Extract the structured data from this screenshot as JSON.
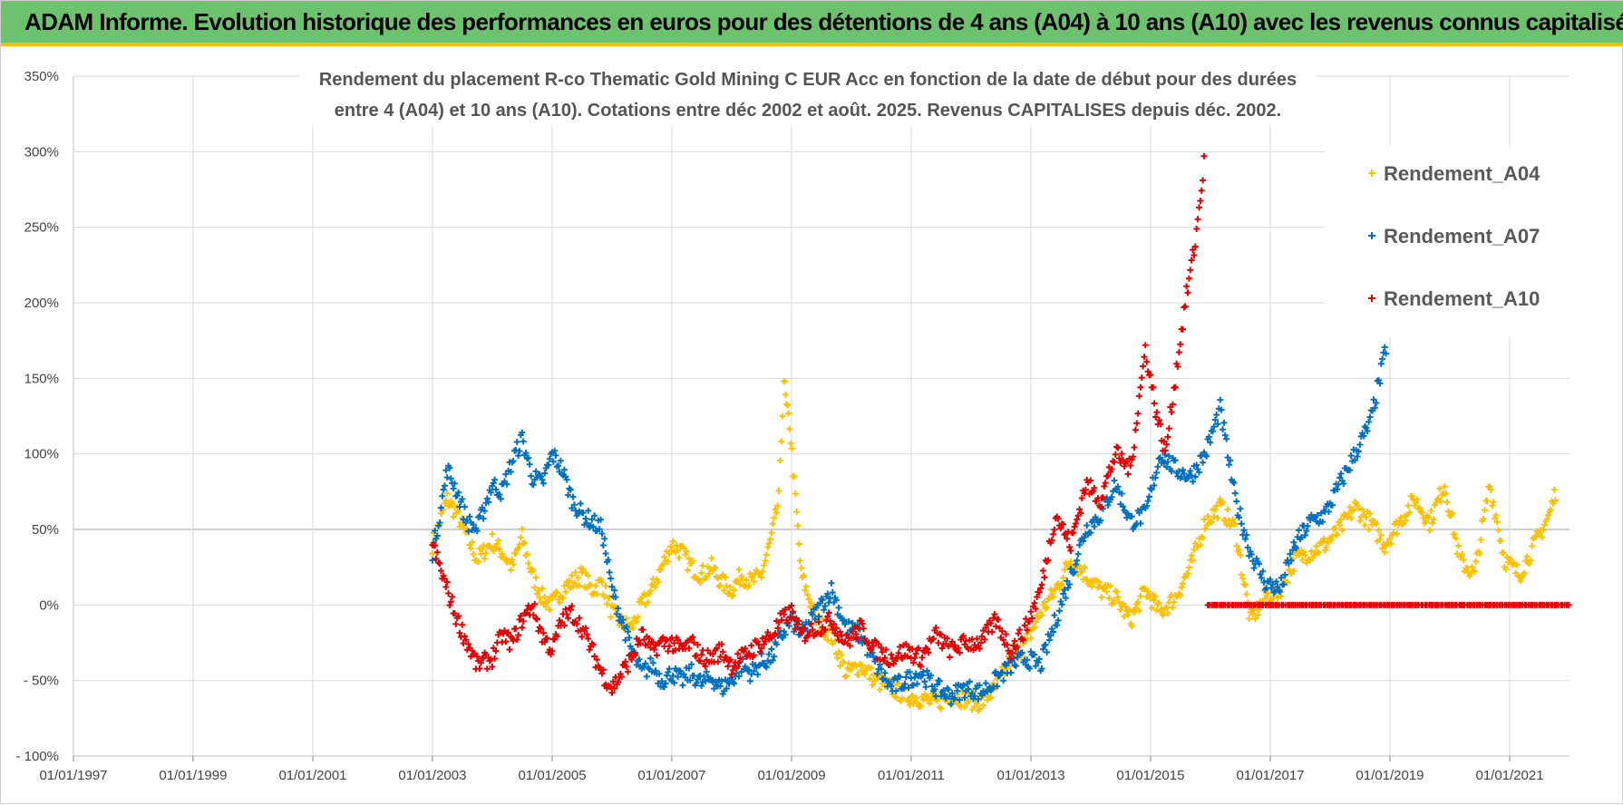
{
  "banner": {
    "title": "ADAM Informe. Evolution historique des performances en euros pour des détentions de 4 ans (A04) à 10 ans (A10) avec les revenus connus capitalisés"
  },
  "colors": {
    "banner_bg": "#6dc36d",
    "banner_accent": "#f2c200",
    "series_A04": "#ffc000",
    "series_A07": "#0070c0",
    "series_A10": "#e60000",
    "grid": "#d9d9d9",
    "zero_line": "#bfbfbf"
  },
  "chart_data": {
    "type": "scatter",
    "title_lines": [
      "Rendement du placement R-co Thematic Gold Mining C EUR Acc en fonction de la date de début pour des durées",
      "entre 4 (A04) et 10 ans (A10).  Cotations entre déc 2002 et août. 2025. Revenus CAPITALISES depuis déc. 2002."
    ],
    "xlabel": "",
    "ylabel": "",
    "x_ticks": [
      "01/01/1997",
      "01/01/1999",
      "01/01/2001",
      "01/01/2003",
      "01/01/2005",
      "01/01/2007",
      "01/01/2009",
      "01/01/2011",
      "01/01/2013",
      "01/01/2015",
      "01/01/2017",
      "01/01/2019",
      "01/01/2021"
    ],
    "xlim": [
      "01/01/1997",
      "01/01/2022"
    ],
    "y_ticks": [
      "- 100%",
      "- 50%",
      "0%",
      "50%",
      "100%",
      "150%",
      "200%",
      "250%",
      "300%",
      "350%"
    ],
    "ylim": [
      -100,
      350
    ],
    "y_unit": "%",
    "grid": true,
    "legend_position": "top-right",
    "marker": "+",
    "series": [
      {
        "name": "Rendement_A04",
        "color": "#ffc000",
        "points": [
          [
            "2003-01-01",
            40
          ],
          [
            "2003-02-15",
            55
          ],
          [
            "2003-04-01",
            70
          ],
          [
            "2003-06-01",
            60
          ],
          [
            "2003-08-01",
            45
          ],
          [
            "2003-10-01",
            30
          ],
          [
            "2004-01-01",
            42
          ],
          [
            "2004-03-01",
            35
          ],
          [
            "2004-05-01",
            25
          ],
          [
            "2004-07-01",
            45
          ],
          [
            "2004-09-01",
            20
          ],
          [
            "2004-11-01",
            5
          ],
          [
            "2005-01-01",
            0
          ],
          [
            "2005-03-01",
            10
          ],
          [
            "2005-05-01",
            15
          ],
          [
            "2005-07-01",
            20
          ],
          [
            "2005-09-01",
            10
          ],
          [
            "2005-11-01",
            15
          ],
          [
            "2006-01-01",
            -5
          ],
          [
            "2006-03-01",
            -12
          ],
          [
            "2006-05-01",
            -15
          ],
          [
            "2006-07-01",
            0
          ],
          [
            "2006-09-01",
            10
          ],
          [
            "2006-11-01",
            25
          ],
          [
            "2007-01-01",
            40
          ],
          [
            "2007-03-01",
            35
          ],
          [
            "2007-05-01",
            25
          ],
          [
            "2007-07-01",
            20
          ],
          [
            "2007-09-01",
            25
          ],
          [
            "2007-11-01",
            15
          ],
          [
            "2008-01-01",
            10
          ],
          [
            "2008-03-01",
            20
          ],
          [
            "2008-05-01",
            15
          ],
          [
            "2008-07-01",
            20
          ],
          [
            "2008-09-01",
            45
          ],
          [
            "2008-10-15",
            70
          ],
          [
            "2008-11-15",
            150
          ],
          [
            "2008-12-01",
            130
          ],
          [
            "2008-12-20",
            120
          ],
          [
            "2009-01-10",
            90
          ],
          [
            "2009-02-01",
            60
          ],
          [
            "2009-03-01",
            20
          ],
          [
            "2009-06-01",
            -10
          ],
          [
            "2009-09-01",
            -20
          ],
          [
            "2009-12-01",
            -45
          ],
          [
            "2010-03-01",
            -40
          ],
          [
            "2010-06-01",
            -50
          ],
          [
            "2010-09-01",
            -55
          ],
          [
            "2010-12-01",
            -60
          ],
          [
            "2011-03-01",
            -62
          ],
          [
            "2011-06-01",
            -65
          ],
          [
            "2011-09-01",
            -60
          ],
          [
            "2011-12-01",
            -62
          ],
          [
            "2012-03-01",
            -65
          ],
          [
            "2012-06-01",
            -55
          ],
          [
            "2012-09-01",
            -35
          ],
          [
            "2012-12-01",
            -25
          ],
          [
            "2013-03-01",
            -5
          ],
          [
            "2013-06-01",
            10
          ],
          [
            "2013-09-01",
            30
          ],
          [
            "2013-12-01",
            20
          ],
          [
            "2014-03-01",
            10
          ],
          [
            "2014-06-01",
            5
          ],
          [
            "2014-09-01",
            -10
          ],
          [
            "2014-12-01",
            10
          ],
          [
            "2015-03-01",
            -5
          ],
          [
            "2015-06-01",
            5
          ],
          [
            "2015-09-01",
            25
          ],
          [
            "2015-12-01",
            55
          ],
          [
            "2016-03-01",
            65
          ],
          [
            "2016-06-01",
            50
          ],
          [
            "2016-09-01",
            -10
          ],
          [
            "2016-12-01",
            5
          ],
          [
            "2017-03-01",
            10
          ],
          [
            "2017-06-01",
            30
          ],
          [
            "2017-09-01",
            35
          ],
          [
            "2017-12-01",
            40
          ],
          [
            "2018-03-01",
            50
          ],
          [
            "2018-06-01",
            65
          ],
          [
            "2018-09-01",
            55
          ],
          [
            "2018-12-01",
            40
          ],
          [
            "2019-03-01",
            55
          ],
          [
            "2019-06-01",
            70
          ],
          [
            "2019-09-01",
            55
          ],
          [
            "2019-12-01",
            80
          ],
          [
            "2020-03-01",
            30
          ],
          [
            "2020-06-01",
            20
          ],
          [
            "2020-09-01",
            80
          ],
          [
            "2020-12-01",
            30
          ],
          [
            "2021-03-01",
            20
          ],
          [
            "2021-06-01",
            40
          ],
          [
            "2021-09-01",
            60
          ],
          [
            "2021-10-15",
            78
          ]
        ]
      },
      {
        "name": "Rendement_A07",
        "color": "#0070c0",
        "points": [
          [
            "2003-01-01",
            35
          ],
          [
            "2003-02-15",
            60
          ],
          [
            "2003-04-01",
            90
          ],
          [
            "2003-06-01",
            75
          ],
          [
            "2003-08-01",
            55
          ],
          [
            "2003-10-01",
            50
          ],
          [
            "2004-01-01",
            80
          ],
          [
            "2004-03-01",
            75
          ],
          [
            "2004-05-01",
            95
          ],
          [
            "2004-07-01",
            110
          ],
          [
            "2004-09-01",
            85
          ],
          [
            "2004-11-01",
            80
          ],
          [
            "2005-01-01",
            100
          ],
          [
            "2005-03-01",
            90
          ],
          [
            "2005-05-01",
            70
          ],
          [
            "2005-07-01",
            60
          ],
          [
            "2005-09-01",
            55
          ],
          [
            "2005-11-01",
            50
          ],
          [
            "2006-01-01",
            10
          ],
          [
            "2006-03-01",
            -10
          ],
          [
            "2006-05-01",
            -30
          ],
          [
            "2006-07-01",
            -45
          ],
          [
            "2006-09-01",
            -40
          ],
          [
            "2006-11-01",
            -50
          ],
          [
            "2007-01-01",
            -45
          ],
          [
            "2007-03-01",
            -50
          ],
          [
            "2007-05-01",
            -45
          ],
          [
            "2007-07-01",
            -52
          ],
          [
            "2007-09-01",
            -48
          ],
          [
            "2007-11-01",
            -55
          ],
          [
            "2008-01-01",
            -50
          ],
          [
            "2008-03-01",
            -40
          ],
          [
            "2008-05-01",
            -45
          ],
          [
            "2008-07-01",
            -38
          ],
          [
            "2008-09-01",
            -35
          ],
          [
            "2008-11-01",
            -20
          ],
          [
            "2009-01-01",
            -10
          ],
          [
            "2009-03-01",
            -20
          ],
          [
            "2009-06-01",
            -5
          ],
          [
            "2009-09-01",
            10
          ],
          [
            "2009-12-01",
            -15
          ],
          [
            "2010-03-01",
            -20
          ],
          [
            "2010-06-01",
            -40
          ],
          [
            "2010-09-01",
            -55
          ],
          [
            "2010-12-01",
            -50
          ],
          [
            "2011-03-01",
            -45
          ],
          [
            "2011-06-01",
            -55
          ],
          [
            "2011-09-01",
            -60
          ],
          [
            "2011-12-01",
            -55
          ],
          [
            "2012-03-01",
            -58
          ],
          [
            "2012-06-01",
            -50
          ],
          [
            "2012-09-01",
            -40
          ],
          [
            "2012-12-01",
            -35
          ],
          [
            "2013-03-01",
            -40
          ],
          [
            "2013-06-01",
            -10
          ],
          [
            "2013-09-01",
            20
          ],
          [
            "2013-12-01",
            50
          ],
          [
            "2014-03-01",
            60
          ],
          [
            "2014-06-01",
            80
          ],
          [
            "2014-09-01",
            55
          ],
          [
            "2014-12-01",
            60
          ],
          [
            "2015-03-01",
            100
          ],
          [
            "2015-06-01",
            90
          ],
          [
            "2015-09-01",
            85
          ],
          [
            "2015-12-01",
            100
          ],
          [
            "2016-03-01",
            130
          ],
          [
            "2016-06-01",
            70
          ],
          [
            "2016-09-01",
            35
          ],
          [
            "2016-12-01",
            15
          ],
          [
            "2017-03-01",
            10
          ],
          [
            "2017-06-01",
            40
          ],
          [
            "2017-09-01",
            55
          ],
          [
            "2017-12-01",
            60
          ],
          [
            "2018-03-01",
            80
          ],
          [
            "2018-06-01",
            100
          ],
          [
            "2018-09-01",
            120
          ],
          [
            "2018-11-01",
            150
          ],
          [
            "2018-12-15",
            175
          ]
        ]
      },
      {
        "name": "Rendement_A10",
        "color": "#e60000",
        "points": [
          [
            "2003-01-01",
            40
          ],
          [
            "2003-02-15",
            25
          ],
          [
            "2003-04-01",
            10
          ],
          [
            "2003-06-01",
            -10
          ],
          [
            "2003-08-01",
            -25
          ],
          [
            "2003-10-01",
            -40
          ],
          [
            "2004-01-01",
            -35
          ],
          [
            "2004-03-01",
            -20
          ],
          [
            "2004-05-01",
            -25
          ],
          [
            "2004-07-01",
            -10
          ],
          [
            "2004-09-01",
            0
          ],
          [
            "2004-11-01",
            -20
          ],
          [
            "2005-01-01",
            -30
          ],
          [
            "2005-03-01",
            -10
          ],
          [
            "2005-05-01",
            -5
          ],
          [
            "2005-07-01",
            -15
          ],
          [
            "2005-09-01",
            -30
          ],
          [
            "2005-11-01",
            -45
          ],
          [
            "2006-01-01",
            -55
          ],
          [
            "2006-03-01",
            -45
          ],
          [
            "2006-05-01",
            -35
          ],
          [
            "2006-07-01",
            -20
          ],
          [
            "2006-09-01",
            -30
          ],
          [
            "2006-11-01",
            -25
          ],
          [
            "2007-01-01",
            -25
          ],
          [
            "2007-03-01",
            -30
          ],
          [
            "2007-05-01",
            -25
          ],
          [
            "2007-07-01",
            -35
          ],
          [
            "2007-09-01",
            -35
          ],
          [
            "2007-11-01",
            -30
          ],
          [
            "2008-01-01",
            -40
          ],
          [
            "2008-03-01",
            -35
          ],
          [
            "2008-05-01",
            -30
          ],
          [
            "2008-07-01",
            -25
          ],
          [
            "2008-09-01",
            -20
          ],
          [
            "2008-11-01",
            -10
          ],
          [
            "2009-01-01",
            -5
          ],
          [
            "2009-03-01",
            -20
          ],
          [
            "2009-06-01",
            -15
          ],
          [
            "2009-09-01",
            -10
          ],
          [
            "2009-12-01",
            -25
          ],
          [
            "2010-03-01",
            -15
          ],
          [
            "2010-06-01",
            -30
          ],
          [
            "2010-09-01",
            -35
          ],
          [
            "2010-12-01",
            -30
          ],
          [
            "2011-03-01",
            -35
          ],
          [
            "2011-06-01",
            -20
          ],
          [
            "2011-09-01",
            -30
          ],
          [
            "2011-12-01",
            -25
          ],
          [
            "2012-03-01",
            -25
          ],
          [
            "2012-06-01",
            -10
          ],
          [
            "2012-09-01",
            -30
          ],
          [
            "2012-12-01",
            -15
          ],
          [
            "2013-03-01",
            10
          ],
          [
            "2013-06-01",
            60
          ],
          [
            "2013-09-01",
            40
          ],
          [
            "2013-12-01",
            80
          ],
          [
            "2014-03-01",
            70
          ],
          [
            "2014-06-01",
            100
          ],
          [
            "2014-09-01",
            90
          ],
          [
            "2014-12-01",
            170
          ],
          [
            "2015-02-01",
            130
          ],
          [
            "2015-04-01",
            100
          ],
          [
            "2015-06-01",
            150
          ],
          [
            "2015-08-01",
            200
          ],
          [
            "2015-10-01",
            240
          ],
          [
            "2015-11-01",
            270
          ],
          [
            "2015-12-01",
            300
          ]
        ]
      },
      {
        "name": "Rendement_A10",
        "color": "#e60000",
        "segment": "zero-line",
        "points": [
          [
            "2015-12-15",
            0
          ],
          [
            "2022-01-01",
            0
          ]
        ]
      }
    ]
  }
}
